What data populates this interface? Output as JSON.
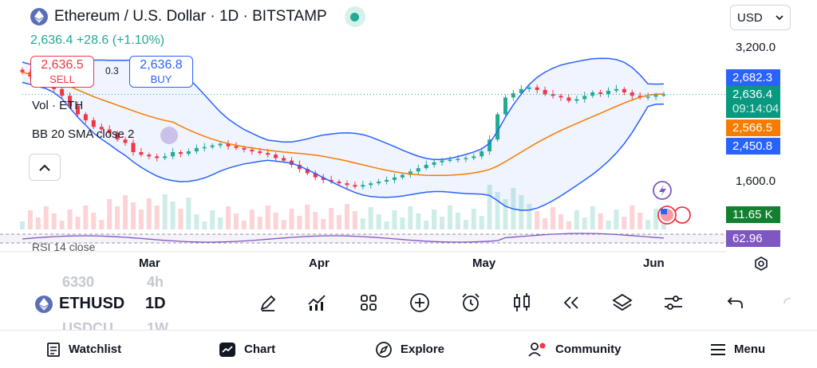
{
  "header": {
    "title": "Ethereum / U.S. Dollar · 1D · BITSTAMP",
    "price_line": "2,636.4 +28.6 (+1.10%)",
    "currency": "USD"
  },
  "trade": {
    "sell_price": "2,636.5",
    "sell_label": "SELL",
    "buy_price": "2,636.8",
    "buy_label": "BUY",
    "spread": "0.3"
  },
  "legends": {
    "volume": "Vol · ETH",
    "bollinger": "BB 20 SMA close 2",
    "rsi": "RSI 14 close"
  },
  "price_axis": {
    "labels": [
      "3,200.0",
      "1,600.0"
    ],
    "tags": {
      "bb_upper": "2,682.3",
      "last_price": "2,636.4",
      "countdown": "09:14:04",
      "bb_basis": "2,566.5",
      "bb_lower": "2,450.8",
      "volume": "11.65 K",
      "rsi": "62.96"
    }
  },
  "time_axis": [
    "Mar",
    "Apr",
    "May",
    "Jun"
  ],
  "toolbar": {
    "symbol": "ETHUSD",
    "interval": "1D",
    "ghost_symbol_top": "6330",
    "ghost_interval_top": "4h",
    "ghost_symbol_bottom": "USDCU",
    "ghost_interval_bottom": "1W",
    "tools": [
      "draw-icon",
      "indicators-icon",
      "templates-icon",
      "add-icon",
      "alert-icon",
      "candles-icon",
      "replay-icon",
      "layers-icon",
      "settings-sliders-icon",
      "undo-icon"
    ]
  },
  "nav": {
    "watchlist": "Watchlist",
    "chart": "Chart",
    "explore": "Explore",
    "community": "Community",
    "menu": "Menu"
  },
  "colors": {
    "up": "#22ab94",
    "down": "#f23645",
    "bb_line": "#2962ff",
    "basis": "#f57c00",
    "accent": "#2962ff"
  },
  "chart_data": {
    "type": "candlestick",
    "interval": "1D",
    "x_ticks": [
      "Mar",
      "Apr",
      "May",
      "Jun"
    ],
    "y_ticks": [
      "3,200.0",
      "1,600.0"
    ],
    "last_price": 2636.4,
    "close_series": [
      2900,
      2850,
      2800,
      2750,
      2700,
      2620,
      2500,
      2400,
      2330,
      2250,
      2220,
      2180,
      2100,
      2060,
      1950,
      1920,
      1900,
      1880,
      1900,
      1950,
      1930,
      1960,
      2000,
      2010,
      2030,
      2050,
      2020,
      2000,
      1980,
      1960,
      1940,
      1920,
      1880,
      1850,
      1800,
      1750,
      1700,
      1650,
      1620,
      1600,
      1580,
      1560,
      1540,
      1560,
      1580,
      1600,
      1620,
      1650,
      1680,
      1720,
      1760,
      1800,
      1830,
      1850,
      1860,
      1870,
      1880,
      1900,
      1960,
      2100,
      2400,
      2600,
      2650,
      2700,
      2720,
      2690,
      2640,
      2620,
      2600,
      2560,
      2580,
      2620,
      2660,
      2640,
      2680,
      2700,
      2660,
      2620,
      2600,
      2610,
      2630,
      2636.4
    ]
  }
}
